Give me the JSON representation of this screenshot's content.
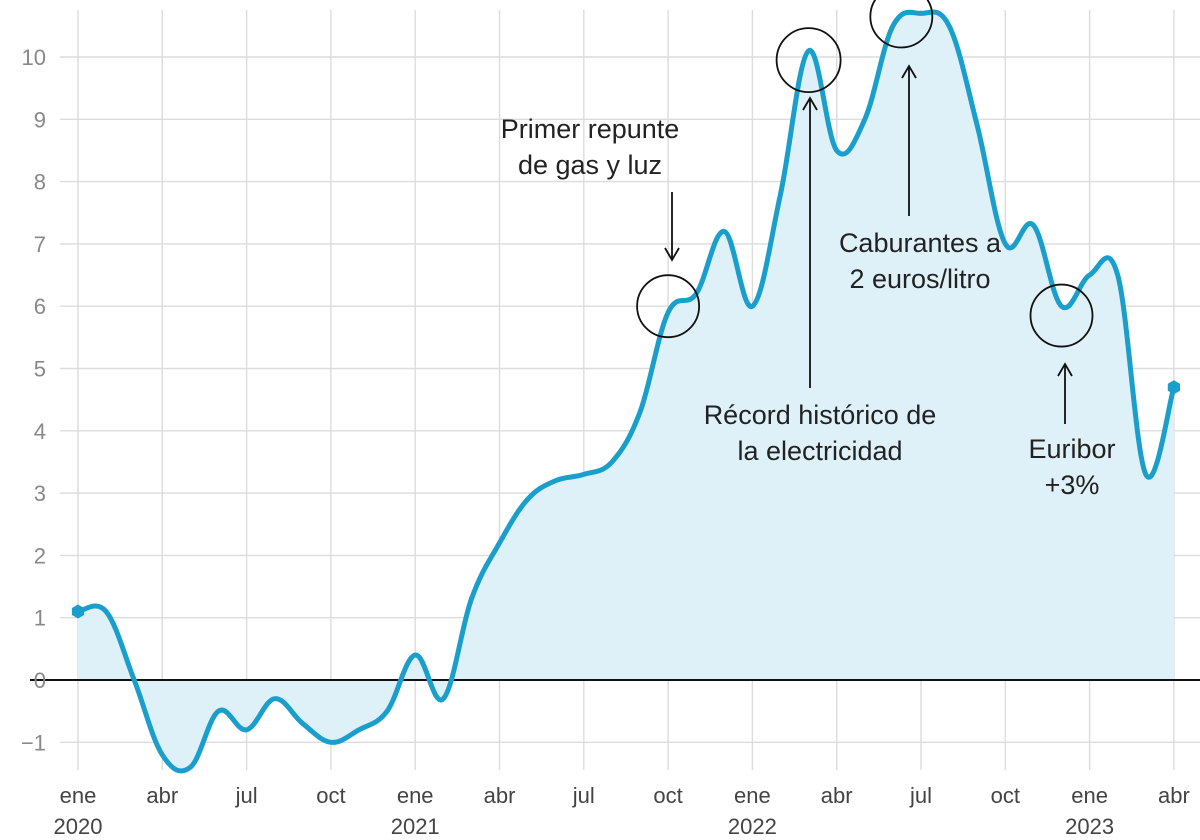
{
  "chart_data": {
    "type": "area",
    "title": "",
    "xlabel": "",
    "ylabel": "",
    "ylim": [
      -1.5,
      10.8
    ],
    "yticks": [
      -1,
      0,
      1,
      2,
      3,
      4,
      5,
      6,
      7,
      8,
      9,
      10
    ],
    "grid": true,
    "color": "#1a9fcd",
    "fill_color": "#dff1f8",
    "x_ticks": [
      {
        "m": 0,
        "label": "ene",
        "year": "2020"
      },
      {
        "m": 3,
        "label": "abr",
        "year": ""
      },
      {
        "m": 6,
        "label": "jul",
        "year": ""
      },
      {
        "m": 9,
        "label": "oct",
        "year": ""
      },
      {
        "m": 12,
        "label": "ene",
        "year": "2021"
      },
      {
        "m": 15,
        "label": "abr",
        "year": ""
      },
      {
        "m": 18,
        "label": "jul",
        "year": ""
      },
      {
        "m": 21,
        "label": "oct",
        "year": ""
      },
      {
        "m": 24,
        "label": "ene",
        "year": "2022"
      },
      {
        "m": 27,
        "label": "abr",
        "year": ""
      },
      {
        "m": 30,
        "label": "jul",
        "year": ""
      },
      {
        "m": 33,
        "label": "oct",
        "year": ""
      },
      {
        "m": 36,
        "label": "ene",
        "year": "2023"
      },
      {
        "m": 39,
        "label": "abr",
        "year": ""
      }
    ],
    "series": [
      {
        "name": "",
        "points": [
          {
            "m": 0,
            "date": "2020-01",
            "y": 1.1
          },
          {
            "m": 1,
            "date": "2020-02",
            "y": 1.1
          },
          {
            "m": 2,
            "date": "2020-03",
            "y": 0.0
          },
          {
            "m": 3,
            "date": "2020-04",
            "y": -1.2
          },
          {
            "m": 4,
            "date": "2020-05",
            "y": -1.4
          },
          {
            "m": 5,
            "date": "2020-06",
            "y": -0.5
          },
          {
            "m": 6,
            "date": "2020-07",
            "y": -0.8
          },
          {
            "m": 7,
            "date": "2020-08",
            "y": -0.3
          },
          {
            "m": 8,
            "date": "2020-09",
            "y": -0.7
          },
          {
            "m": 9,
            "date": "2020-10",
            "y": -1.0
          },
          {
            "m": 10,
            "date": "2020-11",
            "y": -0.8
          },
          {
            "m": 11,
            "date": "2020-12",
            "y": -0.5
          },
          {
            "m": 12,
            "date": "2021-01",
            "y": 0.4
          },
          {
            "m": 13,
            "date": "2021-02",
            "y": -0.3
          },
          {
            "m": 14,
            "date": "2021-03",
            "y": 1.3
          },
          {
            "m": 15,
            "date": "2021-04",
            "y": 2.2
          },
          {
            "m": 16,
            "date": "2021-05",
            "y": 2.9
          },
          {
            "m": 17,
            "date": "2021-06",
            "y": 3.2
          },
          {
            "m": 18,
            "date": "2021-07",
            "y": 3.3
          },
          {
            "m": 19,
            "date": "2021-08",
            "y": 3.5
          },
          {
            "m": 20,
            "date": "2021-09",
            "y": 4.3
          },
          {
            "m": 21,
            "date": "2021-10",
            "y": 5.9
          },
          {
            "m": 22,
            "date": "2021-11",
            "y": 6.2
          },
          {
            "m": 23,
            "date": "2021-12",
            "y": 7.2
          },
          {
            "m": 24,
            "date": "2022-01",
            "y": 6.0
          },
          {
            "m": 25,
            "date": "2022-02",
            "y": 7.8
          },
          {
            "m": 26,
            "date": "2022-03",
            "y": 10.1
          },
          {
            "m": 27,
            "date": "2022-04",
            "y": 8.5
          },
          {
            "m": 28,
            "date": "2022-05",
            "y": 9.0
          },
          {
            "m": 29,
            "date": "2022-06",
            "y": 10.5
          },
          {
            "m": 30,
            "date": "2022-07",
            "y": 10.7
          },
          {
            "m": 31,
            "date": "2022-08",
            "y": 10.5
          },
          {
            "m": 32,
            "date": "2022-09",
            "y": 8.9
          },
          {
            "m": 33,
            "date": "2022-10",
            "y": 7.0
          },
          {
            "m": 34,
            "date": "2022-11",
            "y": 7.3
          },
          {
            "m": 35,
            "date": "2022-12",
            "y": 6.0
          },
          {
            "m": 36,
            "date": "2023-01",
            "y": 6.5
          },
          {
            "m": 37,
            "date": "2023-02",
            "y": 6.5
          },
          {
            "m": 38,
            "date": "2023-03",
            "y": 3.3
          },
          {
            "m": 39,
            "date": "2023-04",
            "y": 4.7
          }
        ]
      }
    ],
    "annotations": [
      {
        "m": 21,
        "y": 6.0,
        "lines": [
          "Primer repunte",
          "de gas y luz"
        ]
      },
      {
        "m": 26,
        "y": 9.95,
        "lines": [
          "Récord histórico de",
          "la electricidad"
        ]
      },
      {
        "m": 29.3,
        "y": 10.65,
        "lines": [
          "Caburantes a",
          "2 euros/litro"
        ]
      },
      {
        "m": 35,
        "y": 5.85,
        "lines": [
          "Euribor",
          "+3%"
        ]
      }
    ]
  }
}
